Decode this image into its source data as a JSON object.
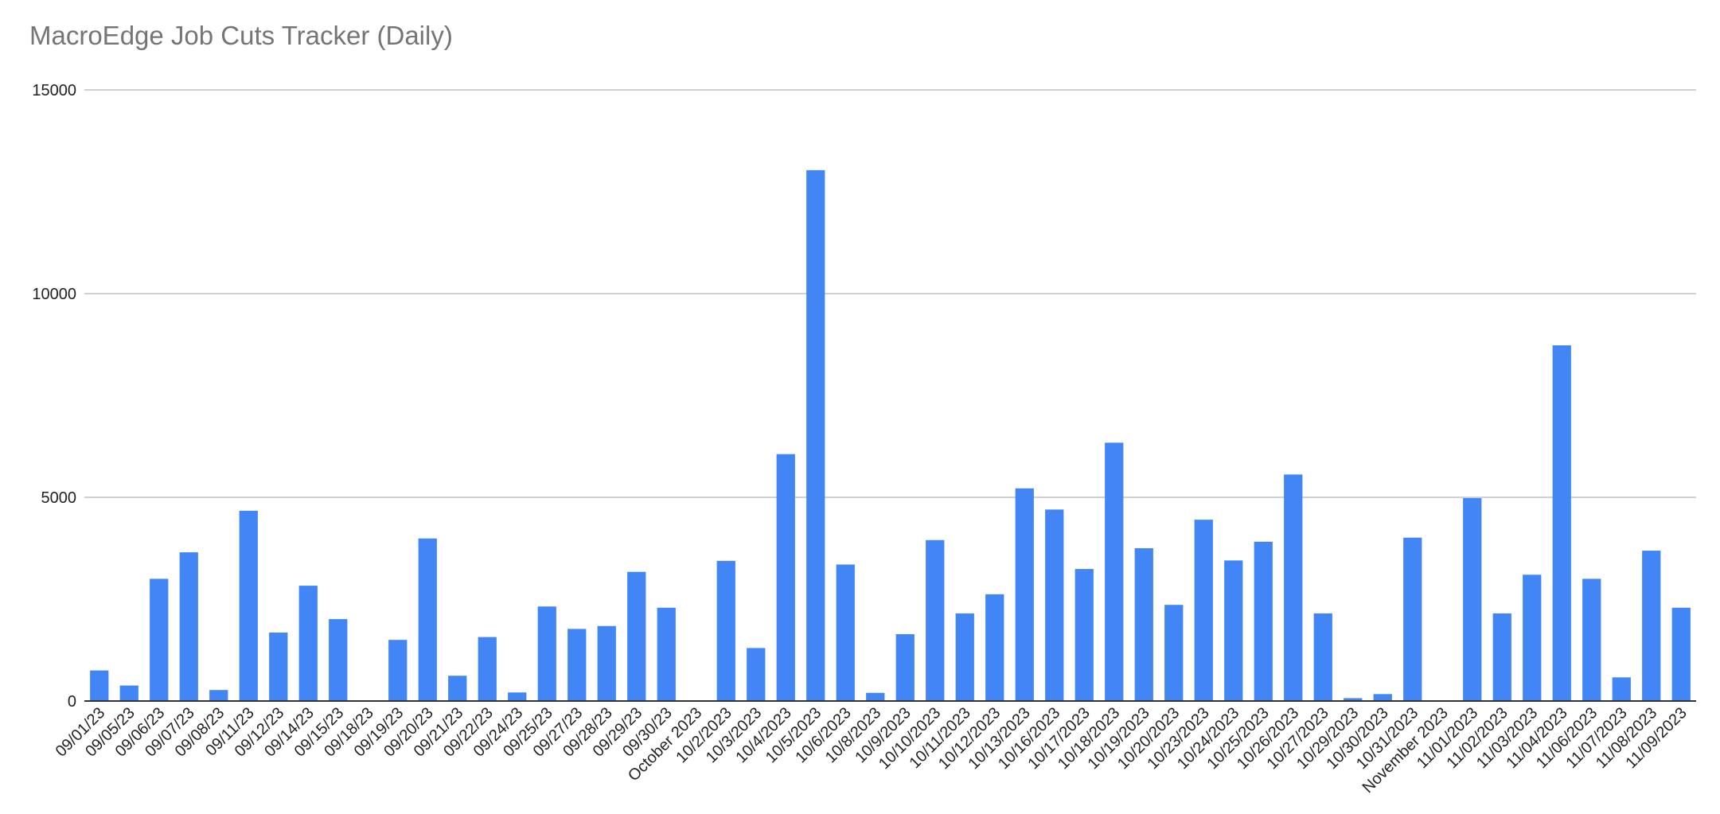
{
  "chart_data": {
    "type": "bar",
    "title": "MacroEdge Job Cuts Tracker (Daily)",
    "xlabel": "",
    "ylabel": "",
    "ylim": [
      0,
      15000
    ],
    "yticks": [
      "0",
      "5000",
      "10000",
      "15000"
    ],
    "grid": true,
    "legend": "none",
    "bar_color": "#4285f4",
    "categories": [
      "09/01/23",
      "09/05/23",
      "09/06/23",
      "09/07/23",
      "09/08/23",
      "09/11/23",
      "09/12/23",
      "09/14/23",
      "09/15/23",
      "09/18/23",
      "09/19/23",
      "09/20/23",
      "09/21/23",
      "09/22/23",
      "09/24/23",
      "09/25/23",
      "09/27/23",
      "09/28/23",
      "09/29/23",
      "09/30/23",
      "October 2023",
      "10/2/2023",
      "10/3/2023",
      "10/4/2023",
      "10/5/2023",
      "10/6/2023",
      "10/8/2023",
      "10/9/2023",
      "10/10/2023",
      "10/11/2023",
      "10/12/2023",
      "10/13/2023",
      "10/16/2023",
      "10/17/2023",
      "10/18/2023",
      "10/19/2023",
      "10/20/2023",
      "10/23/2023",
      "10/24/2023",
      "10/25/2023",
      "10/26/2023",
      "10/27/2023",
      "10/29/2023",
      "10/30/2023",
      "10/31/2023",
      "November 2023",
      "11/01/2023",
      "11/02/2023",
      "11/03/2023",
      "11/04/2023",
      "11/06/2023",
      "11/07/2023",
      "11/08/2023",
      "11/09/2023"
    ],
    "values": [
      750,
      380,
      3000,
      3650,
      270,
      4670,
      1680,
      2830,
      2010,
      0,
      1500,
      3990,
      620,
      1570,
      210,
      2320,
      1770,
      1840,
      3170,
      2290,
      0,
      3440,
      1300,
      6060,
      13030,
      3350,
      200,
      1640,
      3950,
      2150,
      2620,
      5220,
      4700,
      3240,
      6340,
      3750,
      2360,
      4450,
      3450,
      3910,
      5560,
      2150,
      70,
      170,
      4010,
      0,
      4980,
      2150,
      3100,
      8730,
      3000,
      580,
      3690,
      2290
    ]
  }
}
